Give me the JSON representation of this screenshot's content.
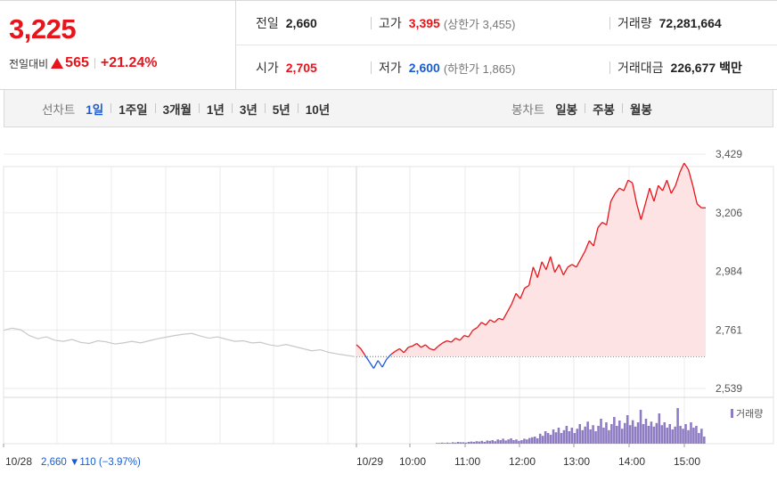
{
  "summary": {
    "current_price": "3,225",
    "change_label": "전일대비",
    "change_value": "565",
    "change_rate": "+21.24%",
    "prev_close_label": "전일",
    "prev_close": "2,660",
    "high_label": "고가",
    "high": "3,395",
    "upper_limit_text": "(상한가 3,455)",
    "volume_label": "거래량",
    "volume": "72,281,664",
    "open_label": "시가",
    "open": "2,705",
    "low_label": "저가",
    "low": "2,600",
    "lower_limit_text": "(하한가 1,865)",
    "value_label": "거래대금",
    "trade_value": "226,677",
    "trade_value_unit": "백만"
  },
  "line_chart_tabs": {
    "label": "선차트",
    "items": [
      "1일",
      "1주일",
      "3개월",
      "1년",
      "3년",
      "5년",
      "10년"
    ],
    "active": "1일"
  },
  "candle_chart_tabs": {
    "label": "봉차트",
    "items": [
      "일봉",
      "주봉",
      "월봉"
    ]
  },
  "colors": {
    "up": "#e8141b",
    "down": "#1a5cd6",
    "volume": "#8e7cc3",
    "grid": "#ebebeb",
    "prev_line": "#c8c8c8"
  },
  "chart_data": {
    "type": "line",
    "y_ticks": [
      "3,429",
      "3,206",
      "2,984",
      "2,761",
      "2,539"
    ],
    "ylim": [
      2539,
      3429
    ],
    "x_tick_labels": [
      "10/28",
      "10/29",
      "10:00",
      "11:00",
      "12:00",
      "13:00",
      "14:00",
      "15:00"
    ],
    "prev_day_note": {
      "date": "10/28",
      "close": "2,660",
      "change": "▼110",
      "rate": "(−3.97%)"
    },
    "volume_legend": "거래량",
    "baseline": 2660,
    "prev_day_series": [
      2760,
      2768,
      2762,
      2740,
      2728,
      2735,
      2722,
      2718,
      2725,
      2714,
      2710,
      2720,
      2716,
      2708,
      2712,
      2718,
      2712,
      2720,
      2728,
      2734,
      2740,
      2745,
      2748,
      2738,
      2730,
      2735,
      2726,
      2718,
      2720,
      2712,
      2714,
      2705,
      2700,
      2706,
      2698,
      2690,
      2682,
      2686,
      2676,
      2670,
      2665,
      2660
    ],
    "today_series": [
      2705,
      2690,
      2665,
      2640,
      2615,
      2645,
      2620,
      2650,
      2668,
      2680,
      2690,
      2675,
      2695,
      2700,
      2710,
      2695,
      2705,
      2690,
      2685,
      2700,
      2712,
      2720,
      2715,
      2730,
      2722,
      2740,
      2735,
      2760,
      2770,
      2790,
      2780,
      2800,
      2790,
      2805,
      2800,
      2830,
      2860,
      2900,
      2880,
      2920,
      2930,
      3000,
      2960,
      3020,
      2990,
      3040,
      2980,
      3010,
      2970,
      3000,
      3010,
      3000,
      3030,
      3060,
      3100,
      3080,
      3150,
      3170,
      3160,
      3250,
      3280,
      3300,
      3290,
      3330,
      3320,
      3240,
      3180,
      3240,
      3300,
      3250,
      3310,
      3290,
      3330,
      3280,
      3310,
      3360,
      3395,
      3370,
      3310,
      3240,
      3225,
      3225
    ],
    "volume_series": [
      0,
      0,
      0,
      0,
      0,
      0,
      0,
      0,
      0,
      0,
      0,
      0,
      0,
      0,
      0,
      0,
      0,
      0,
      0,
      0,
      0,
      0,
      0,
      0,
      0,
      0,
      0,
      0,
      0,
      0,
      0.02,
      0.02,
      0.03,
      0.02,
      0.03,
      0.02,
      0.04,
      0.03,
      0.05,
      0.04,
      0.04,
      0.03,
      0.05,
      0.06,
      0.05,
      0.07,
      0.06,
      0.08,
      0.05,
      0.09,
      0.08,
      0.1,
      0.07,
      0.12,
      0.1,
      0.14,
      0.09,
      0.12,
      0.15,
      0.1,
      0.12,
      0.08,
      0.1,
      0.14,
      0.12,
      0.16,
      0.18,
      0.2,
      0.15,
      0.28,
      0.22,
      0.35,
      0.3,
      0.25,
      0.4,
      0.32,
      0.45,
      0.3,
      0.38,
      0.5,
      0.35,
      0.45,
      0.3,
      0.42,
      0.55,
      0.38,
      0.48,
      0.62,
      0.4,
      0.52,
      0.35,
      0.5,
      0.7,
      0.45,
      0.6,
      0.38,
      0.55,
      0.75,
      0.5,
      0.65,
      0.42,
      0.58,
      0.8,
      0.52,
      0.66,
      0.48,
      0.6,
      0.95,
      0.55,
      0.7,
      0.5,
      0.62,
      0.48,
      0.58,
      0.85,
      0.52,
      0.6,
      0.45,
      0.55,
      0.4,
      0.48,
      1.0,
      0.5,
      0.42,
      0.55,
      0.38,
      0.6,
      0.45,
      0.5,
      0.3,
      0.42,
      0.2
    ]
  }
}
